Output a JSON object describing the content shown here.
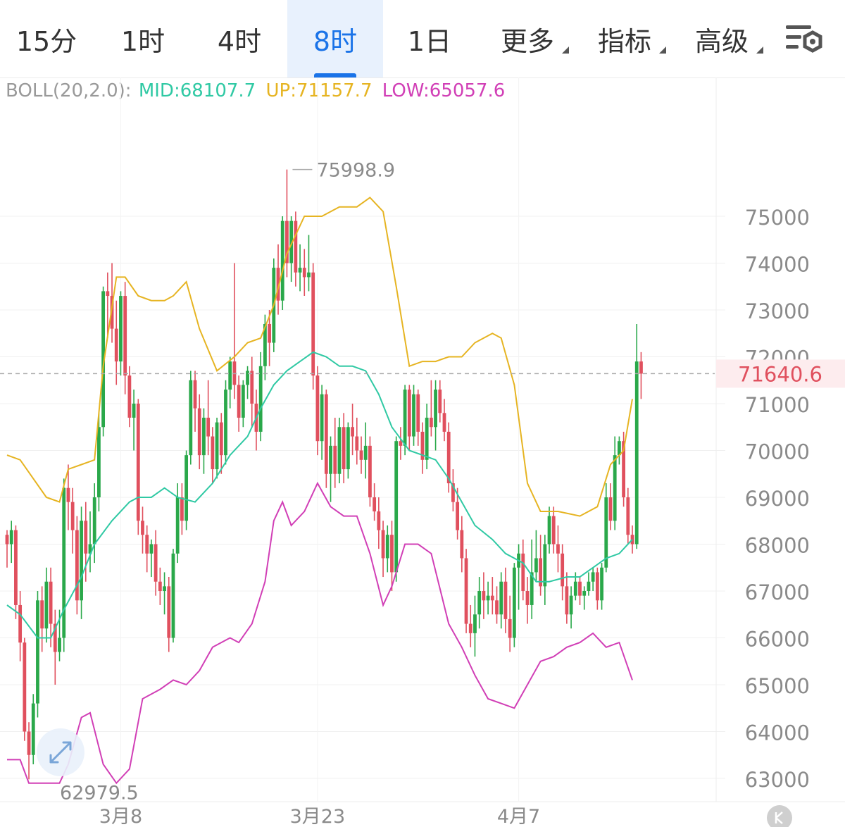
{
  "tabs": [
    {
      "label": "15分",
      "active": false,
      "dropdown": false
    },
    {
      "label": "1时",
      "active": false,
      "dropdown": false
    },
    {
      "label": "4时",
      "active": false,
      "dropdown": false
    },
    {
      "label": "8时",
      "active": true,
      "dropdown": false
    },
    {
      "label": "1日",
      "active": false,
      "dropdown": false
    },
    {
      "label": "更多",
      "active": false,
      "dropdown": true
    },
    {
      "label": "指标",
      "active": false,
      "dropdown": true
    },
    {
      "label": "高级",
      "active": false,
      "dropdown": true
    }
  ],
  "settings_icon": "chart-settings-icon",
  "indicator": {
    "name": "BOLL(20,2.0):",
    "mid": "MID:68107.7",
    "up": "UP:71157.7",
    "low": "LOW:65057.6"
  },
  "colors": {
    "up_candle": "#2aa84a",
    "down_candle": "#e0505e",
    "mid_line": "#30c9a4",
    "upper_band": "#e6b422",
    "lower_band": "#d13fb6",
    "accent": "#1a73e8",
    "price_tag": "#e0505e"
  },
  "chart_data": {
    "type": "candlestick",
    "y_ticks": [
      63000,
      64000,
      65000,
      66000,
      67000,
      68000,
      69000,
      70000,
      71000,
      72000,
      73000,
      74000,
      75000
    ],
    "ylim": [
      62600,
      76700
    ],
    "x_labels": [
      {
        "label": "3月8",
        "index": 26
      },
      {
        "label": "3月23",
        "index": 71
      },
      {
        "label": "4月7",
        "index": 117
      }
    ],
    "high_label": "75998.9",
    "low_label": "62979.5",
    "current_price": "71640.6",
    "current_value": 71640.6,
    "candles": [
      [
        68200,
        68000,
        68300,
        67500
      ],
      [
        68000,
        68300,
        68500,
        67600
      ],
      [
        68300,
        66700,
        68400,
        66400
      ],
      [
        66700,
        65900,
        67000,
        65500
      ],
      [
        65900,
        64000,
        66000,
        63800
      ],
      [
        64000,
        63500,
        64200,
        62979.5
      ],
      [
        63500,
        64600,
        64800,
        63300
      ],
      [
        64600,
        66800,
        67000,
        64300
      ],
      [
        66800,
        66200,
        67100,
        65700
      ],
      [
        66200,
        67200,
        67500,
        65900
      ],
      [
        67200,
        66300,
        67500,
        65800
      ],
      [
        66300,
        65700,
        66600,
        65000
      ],
      [
        65700,
        66000,
        66600,
        65500
      ],
      [
        66000,
        69200,
        69400,
        65700
      ],
      [
        69200,
        68900,
        69700,
        68300
      ],
      [
        68900,
        68300,
        69200,
        67800
      ],
      [
        68300,
        66800,
        68600,
        66500
      ],
      [
        66800,
        68500,
        68800,
        66400
      ],
      [
        68500,
        67800,
        68900,
        67200
      ],
      [
        67800,
        68000,
        68700,
        67400
      ],
      [
        68000,
        69000,
        69300,
        67600
      ],
      [
        69000,
        70500,
        70800,
        68700
      ],
      [
        70500,
        73400,
        73500,
        70300
      ],
      [
        73400,
        73300,
        73800,
        72400
      ],
      [
        73300,
        72600,
        74000,
        72300
      ],
      [
        72600,
        71900,
        73200,
        71400
      ],
      [
        71900,
        73300,
        73400,
        71600
      ],
      [
        73300,
        71600,
        73600,
        71200
      ],
      [
        71600,
        70700,
        71800,
        70500
      ],
      [
        70700,
        71000,
        71300,
        70000
      ],
      [
        71000,
        68500,
        71100,
        68200
      ],
      [
        68500,
        68200,
        68800,
        67800
      ],
      [
        68200,
        67800,
        68400,
        67400
      ],
      [
        67800,
        68000,
        68100,
        67300
      ],
      [
        68000,
        67200,
        68300,
        66900
      ],
      [
        67200,
        67000,
        67500,
        66700
      ],
      [
        67000,
        67100,
        67400,
        66500
      ],
      [
        67100,
        66000,
        67300,
        65700
      ],
      [
        66000,
        67800,
        67900,
        65900
      ],
      [
        67800,
        69000,
        69300,
        67600
      ],
      [
        69000,
        68500,
        69300,
        68200
      ],
      [
        68500,
        69900,
        70000,
        68300
      ],
      [
        69900,
        71500,
        71700,
        69700
      ],
      [
        71500,
        70900,
        71700,
        70400
      ],
      [
        70900,
        69900,
        71200,
        69600
      ],
      [
        69900,
        70700,
        70900,
        69500
      ],
      [
        70700,
        70300,
        71500,
        69900
      ],
      [
        70300,
        69600,
        70500,
        69300
      ],
      [
        69600,
        70600,
        70700,
        69400
      ],
      [
        70600,
        69900,
        70800,
        69500
      ],
      [
        69900,
        71300,
        71500,
        69700
      ],
      [
        71300,
        71900,
        72000,
        70900
      ],
      [
        71900,
        71400,
        74000,
        71100
      ],
      [
        71400,
        70700,
        71600,
        70400
      ],
      [
        70700,
        71400,
        71500,
        70500
      ],
      [
        71400,
        71700,
        71800,
        71100
      ],
      [
        71700,
        71000,
        72000,
        70500
      ],
      [
        71000,
        70400,
        71300,
        70000
      ],
      [
        70400,
        71800,
        72100,
        70200
      ],
      [
        71800,
        72700,
        72900,
        71500
      ],
      [
        72700,
        72300,
        73000,
        71800
      ],
      [
        72300,
        73900,
        74100,
        72100
      ],
      [
        73900,
        73200,
        74400,
        72900
      ],
      [
        73200,
        74900,
        75000,
        73000
      ],
      [
        74900,
        74000,
        75998.9,
        73700
      ],
      [
        74000,
        74900,
        75000,
        73600
      ],
      [
        74900,
        73800,
        75100,
        73500
      ],
      [
        73800,
        73900,
        74400,
        73400
      ],
      [
        73900,
        73700,
        74300,
        73300
      ],
      [
        73700,
        73800,
        74600,
        73400
      ],
      [
        73800,
        71600,
        74000,
        71300
      ],
      [
        71600,
        70200,
        71800,
        69900
      ],
      [
        70200,
        71200,
        71400,
        69800
      ],
      [
        71200,
        69500,
        71300,
        69200
      ],
      [
        69500,
        70100,
        70300,
        68900
      ],
      [
        70100,
        69500,
        70700,
        69200
      ],
      [
        69500,
        70500,
        70700,
        69300
      ],
      [
        70500,
        69600,
        70800,
        69300
      ],
      [
        69600,
        70500,
        70600,
        69400
      ],
      [
        70500,
        70300,
        71000,
        69900
      ],
      [
        70300,
        70000,
        70700,
        69700
      ],
      [
        70000,
        69800,
        70300,
        69500
      ],
      [
        69800,
        70100,
        70600,
        69400
      ],
      [
        70100,
        69000,
        70300,
        68800
      ],
      [
        69000,
        68700,
        69300,
        68500
      ],
      [
        68700,
        68300,
        69000,
        67900
      ],
      [
        68300,
        67700,
        68500,
        67300
      ],
      [
        67700,
        68200,
        68400,
        67400
      ],
      [
        68200,
        67400,
        68500,
        67000
      ],
      [
        67400,
        70200,
        70300,
        67200
      ],
      [
        70200,
        70100,
        70500,
        69800
      ],
      [
        70100,
        71300,
        71400,
        69900
      ],
      [
        71300,
        70300,
        71400,
        70000
      ],
      [
        70300,
        71200,
        71400,
        70100
      ],
      [
        71200,
        70400,
        71300,
        70100
      ],
      [
        70400,
        69800,
        70600,
        69500
      ],
      [
        69800,
        70700,
        71000,
        69600
      ],
      [
        70700,
        70500,
        71500,
        70300
      ],
      [
        70500,
        71300,
        71500,
        70000
      ],
      [
        71300,
        70800,
        71500,
        70600
      ],
      [
        70800,
        70400,
        71100,
        70200
      ],
      [
        70400,
        69300,
        70600,
        69100
      ],
      [
        69300,
        68900,
        69600,
        68700
      ],
      [
        68900,
        68300,
        69200,
        68100
      ],
      [
        68300,
        67700,
        68600,
        67400
      ],
      [
        67700,
        66300,
        67900,
        66100
      ],
      [
        66300,
        66100,
        66700,
        65800
      ],
      [
        66100,
        66500,
        66900,
        65600
      ],
      [
        66500,
        67000,
        67300,
        66200
      ],
      [
        67000,
        66800,
        67400,
        66400
      ],
      [
        66800,
        66900,
        67200,
        66500
      ],
      [
        66900,
        66800,
        67300,
        66500
      ],
      [
        66800,
        66500,
        67100,
        66300
      ],
      [
        66500,
        67200,
        67400,
        66200
      ],
      [
        67200,
        66400,
        67500,
        66100
      ],
      [
        66400,
        66000,
        66900,
        65700
      ],
      [
        66000,
        67500,
        67600,
        65800
      ],
      [
        67500,
        67800,
        68000,
        66600
      ],
      [
        67800,
        67000,
        68100,
        66800
      ],
      [
        67000,
        66700,
        67300,
        66300
      ],
      [
        66700,
        67400,
        68100,
        66400
      ],
      [
        67400,
        67700,
        68300,
        67200
      ],
      [
        67700,
        67100,
        68200,
        66900
      ],
      [
        67100,
        68000,
        68200,
        66700
      ],
      [
        68000,
        68600,
        68800,
        67800
      ],
      [
        68600,
        68000,
        68800,
        67800
      ],
      [
        68000,
        67800,
        68400,
        67400
      ],
      [
        67800,
        67100,
        68000,
        66800
      ],
      [
        67100,
        66500,
        67400,
        66300
      ],
      [
        66500,
        66900,
        67100,
        66200
      ],
      [
        66900,
        67200,
        67400,
        66800
      ],
      [
        67200,
        66900,
        67300,
        66700
      ],
      [
        66900,
        67000,
        67100,
        66600
      ],
      [
        67000,
        67200,
        67400,
        66900
      ],
      [
        67200,
        67400,
        67500,
        67000
      ],
      [
        67400,
        66800,
        67500,
        66600
      ],
      [
        66800,
        67500,
        67600,
        66600
      ],
      [
        67500,
        69000,
        69300,
        67400
      ],
      [
        69000,
        68500,
        69300,
        68300
      ],
      [
        68500,
        69900,
        70300,
        68300
      ],
      [
        69900,
        70200,
        70300,
        69700
      ],
      [
        70200,
        69000,
        70400,
        68800
      ],
      [
        69000,
        68200,
        69200,
        68000
      ],
      [
        68200,
        68000,
        68400,
        67800
      ],
      [
        68000,
        71900,
        72700,
        67900
      ],
      [
        71900,
        71640.6,
        72100,
        71100
      ]
    ],
    "boll_up": [
      [
        0,
        69900
      ],
      [
        3,
        69800
      ],
      [
        9,
        69000
      ],
      [
        12,
        68900
      ],
      [
        14,
        69600
      ],
      [
        17,
        69700
      ],
      [
        20,
        69800
      ],
      [
        22,
        71800
      ],
      [
        25,
        73700
      ],
      [
        27,
        73700
      ],
      [
        30,
        73300
      ],
      [
        33,
        73200
      ],
      [
        36,
        73200
      ],
      [
        38,
        73300
      ],
      [
        41,
        73600
      ],
      [
        44,
        72600
      ],
      [
        48,
        71700
      ],
      [
        52,
        72000
      ],
      [
        55,
        72300
      ],
      [
        58,
        72400
      ],
      [
        61,
        73100
      ],
      [
        64,
        74200
      ],
      [
        68,
        75000
      ],
      [
        72,
        75000
      ],
      [
        76,
        75200
      ],
      [
        80,
        75200
      ],
      [
        83,
        75400
      ],
      [
        86,
        75100
      ],
      [
        89,
        73500
      ],
      [
        92,
        71800
      ],
      [
        95,
        71900
      ],
      [
        98,
        71900
      ],
      [
        101,
        72000
      ],
      [
        104,
        72000
      ],
      [
        107,
        72300
      ],
      [
        111,
        72500
      ],
      [
        113,
        72400
      ],
      [
        116,
        71400
      ],
      [
        119,
        69300
      ],
      [
        122,
        68700
      ],
      [
        126,
        68700
      ],
      [
        131,
        68600
      ],
      [
        135,
        68800
      ],
      [
        138,
        69700
      ],
      [
        141,
        70000
      ],
      [
        143,
        71100
      ]
    ],
    "boll_mid": [
      [
        0,
        66700
      ],
      [
        3,
        66500
      ],
      [
        7,
        66000
      ],
      [
        10,
        66000
      ],
      [
        13,
        66600
      ],
      [
        17,
        67300
      ],
      [
        20,
        68000
      ],
      [
        24,
        68500
      ],
      [
        28,
        68900
      ],
      [
        30,
        69000
      ],
      [
        33,
        69000
      ],
      [
        36,
        69200
      ],
      [
        39,
        69000
      ],
      [
        43,
        68900
      ],
      [
        47,
        69300
      ],
      [
        51,
        69900
      ],
      [
        55,
        70300
      ],
      [
        58,
        70900
      ],
      [
        61,
        71400
      ],
      [
        64,
        71700
      ],
      [
        67,
        71900
      ],
      [
        70,
        72100
      ],
      [
        73,
        72000
      ],
      [
        76,
        71800
      ],
      [
        79,
        71800
      ],
      [
        82,
        71700
      ],
      [
        85,
        71200
      ],
      [
        88,
        70500
      ],
      [
        92,
        70000
      ],
      [
        95,
        69900
      ],
      [
        98,
        69800
      ],
      [
        101,
        69400
      ],
      [
        104,
        68900
      ],
      [
        107,
        68400
      ],
      [
        111,
        68100
      ],
      [
        114,
        67800
      ],
      [
        118,
        67600
      ],
      [
        121,
        67200
      ],
      [
        124,
        67200
      ],
      [
        128,
        67300
      ],
      [
        131,
        67300
      ],
      [
        134,
        67500
      ],
      [
        137,
        67700
      ],
      [
        140,
        67800
      ],
      [
        143,
        68100
      ]
    ],
    "boll_low": [
      [
        0,
        63400
      ],
      [
        3,
        63400
      ],
      [
        5,
        62900
      ],
      [
        8,
        62900
      ],
      [
        12,
        62900
      ],
      [
        14,
        63300
      ],
      [
        17,
        64300
      ],
      [
        19,
        64400
      ],
      [
        22,
        63300
      ],
      [
        25,
        62900
      ],
      [
        28,
        63200
      ],
      [
        31,
        64700
      ],
      [
        35,
        64900
      ],
      [
        38,
        65100
      ],
      [
        41,
        65000
      ],
      [
        44,
        65300
      ],
      [
        47,
        65800
      ],
      [
        51,
        66000
      ],
      [
        53,
        65900
      ],
      [
        56,
        66300
      ],
      [
        59,
        67200
      ],
      [
        61,
        68500
      ],
      [
        63,
        68900
      ],
      [
        65,
        68400
      ],
      [
        68,
        68700
      ],
      [
        71,
        69300
      ],
      [
        74,
        68800
      ],
      [
        77,
        68600
      ],
      [
        80,
        68600
      ],
      [
        83,
        67800
      ],
      [
        86,
        66700
      ],
      [
        88,
        67100
      ],
      [
        91,
        68000
      ],
      [
        94,
        68000
      ],
      [
        97,
        67800
      ],
      [
        101,
        66300
      ],
      [
        104,
        65800
      ],
      [
        107,
        65200
      ],
      [
        110,
        64700
      ],
      [
        113,
        64600
      ],
      [
        116,
        64500
      ],
      [
        119,
        65000
      ],
      [
        122,
        65500
      ],
      [
        125,
        65600
      ],
      [
        128,
        65800
      ],
      [
        131,
        65900
      ],
      [
        134,
        66100
      ],
      [
        137,
        65800
      ],
      [
        140,
        65900
      ],
      [
        143,
        65100
      ]
    ]
  }
}
